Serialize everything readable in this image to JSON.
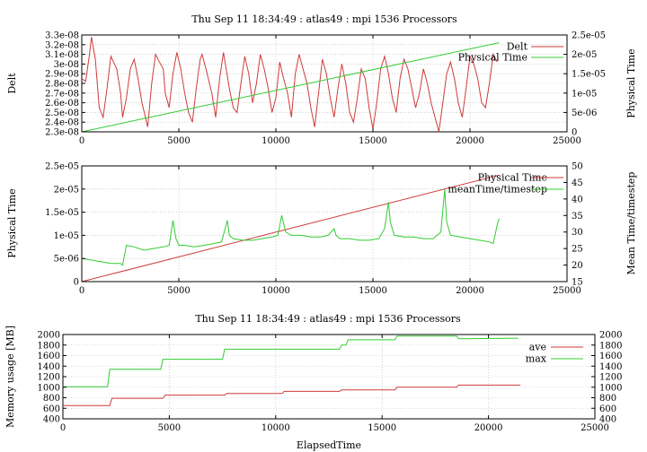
{
  "colors": {
    "red": "#d03a3a",
    "green": "#33cc33",
    "axis": "#000000",
    "grid": "#b8b8b8"
  },
  "chart_data": [
    {
      "type": "line",
      "title": "Thu Sep 11 18:34:49 : atlas49 : mpi 1536 Processors",
      "xlabel": "",
      "ylabel": "Delt",
      "y2label": "Physical Time",
      "xlim": [
        0,
        25000
      ],
      "ylim": [
        2.3e-08,
        3.3e-08
      ],
      "y2lim": [
        0,
        2.5e-05
      ],
      "xticks": [
        "0",
        "5000",
        "10000",
        "15000",
        "20000",
        "25000"
      ],
      "yticks": [
        "2.3e-08",
        "2.4e-08",
        "2.5e-08",
        "2.6e-08",
        "2.7e-08",
        "2.8e-08",
        "2.9e-08",
        "3e-08",
        "3.1e-08",
        "3.2e-08",
        "3.3e-08"
      ],
      "y2ticks": [
        "0",
        "5e-06",
        "1e-05",
        "1.5e-05",
        "2e-05",
        "2.5e-05"
      ],
      "grid": true,
      "legend_position": "top-right",
      "series": [
        {
          "name": "Delt",
          "axis": "left",
          "color": "#d03a3a",
          "x": [
            0,
            200,
            400,
            500,
            700,
            900,
            1100,
            1300,
            1500,
            1800,
            2000,
            2100,
            2300,
            2500,
            2700,
            2900,
            3100,
            3400,
            3600,
            3800,
            4000,
            4200,
            4300,
            4500,
            4700,
            4900,
            5100,
            5300,
            5500,
            5700,
            5900,
            6100,
            6200,
            6400,
            6700,
            6900,
            7100,
            7300,
            7400,
            7600,
            7800,
            8000,
            8200,
            8400,
            8600,
            8800,
            9000,
            9200,
            9400,
            9600,
            9800,
            10000,
            10200,
            10400,
            10600,
            10800,
            11000,
            11200,
            11400,
            11600,
            11800,
            12000,
            12200,
            12400,
            12600,
            12800,
            13000,
            13200,
            13400,
            13600,
            13800,
            14000,
            14200,
            14400,
            14600,
            14800,
            15000,
            15200,
            15400,
            15600,
            15800,
            16000,
            16200,
            16400,
            16600,
            16800,
            17000,
            17200,
            17400,
            17600,
            17800,
            18000,
            18200,
            18400,
            18600,
            18800,
            19000,
            19200,
            19400,
            19600,
            19800,
            20000,
            20200,
            20400,
            20600,
            20800,
            21000,
            21200,
            21400
          ],
          "y": [
            2.85e-08,
            2.82e-08,
            3.1e-08,
            3.28e-08,
            3.05e-08,
            2.55e-08,
            2.45e-08,
            2.75e-08,
            3.08e-08,
            2.95e-08,
            2.7e-08,
            2.45e-08,
            2.65e-08,
            2.95e-08,
            3.05e-08,
            2.85e-08,
            2.6e-08,
            2.35e-08,
            2.8e-08,
            3.1e-08,
            3.02e-08,
            2.95e-08,
            2.7e-08,
            2.55e-08,
            2.9e-08,
            3.12e-08,
            2.95e-08,
            2.7e-08,
            2.5e-08,
            2.4e-08,
            2.75e-08,
            3.05e-08,
            3.1e-08,
            2.95e-08,
            2.7e-08,
            2.45e-08,
            2.85e-08,
            3.12e-08,
            3e-08,
            2.75e-08,
            2.55e-08,
            2.5e-08,
            2.8e-08,
            3.08e-08,
            2.9e-08,
            2.6e-08,
            2.8e-08,
            3.1e-08,
            2.95e-08,
            2.75e-08,
            2.5e-08,
            2.65e-08,
            3.02e-08,
            2.85e-08,
            2.7e-08,
            2.45e-08,
            2.9e-08,
            3.1e-08,
            2.95e-08,
            2.8e-08,
            2.55e-08,
            2.35e-08,
            2.7e-08,
            3.05e-08,
            2.9e-08,
            2.65e-08,
            2.45e-08,
            2.75e-08,
            3e-08,
            2.8e-08,
            2.5e-08,
            2.4e-08,
            2.65e-08,
            2.95e-08,
            2.85e-08,
            2.55e-08,
            2.33e-08,
            2.6e-08,
            2.95e-08,
            3.08e-08,
            2.9e-08,
            2.65e-08,
            2.5e-08,
            2.85e-08,
            3.05e-08,
            2.95e-08,
            2.75e-08,
            2.55e-08,
            2.7e-08,
            2.95e-08,
            2.8e-08,
            2.6e-08,
            2.45e-08,
            2.3e-08,
            2.6e-08,
            2.9e-08,
            3.02e-08,
            2.85e-08,
            2.6e-08,
            2.45e-08,
            2.75e-08,
            3.08e-08,
            3e-08,
            2.85e-08,
            2.6e-08,
            2.55e-08,
            2.8e-08,
            3.1e-08,
            3.02e-08
          ]
        },
        {
          "name": "Physical Time",
          "axis": "right",
          "color": "#33cc33",
          "x": [
            0,
            21500
          ],
          "y": [
            0,
            2.3e-05
          ]
        }
      ]
    },
    {
      "type": "line",
      "title": "",
      "xlabel": "",
      "ylabel": "Physical Time",
      "y2label": "Mean Time/timestep",
      "xlim": [
        0,
        25000
      ],
      "ylim": [
        0,
        2.5e-05
      ],
      "y2lim": [
        15,
        50
      ],
      "xticks": [
        "0",
        "5000",
        "10000",
        "15000",
        "20000",
        "25000"
      ],
      "yticks": [
        "0",
        "5e-06",
        "1e-05",
        "1.5e-05",
        "2e-05",
        "2.5e-05"
      ],
      "y2ticks": [
        "15",
        "20",
        "25",
        "30",
        "35",
        "40",
        "45",
        "50"
      ],
      "grid": true,
      "legend_position": "top-right",
      "series": [
        {
          "name": "Physical Time",
          "axis": "left",
          "color": "#d03a3a",
          "x": [
            0,
            21500
          ],
          "y": [
            0,
            2.3e-05
          ]
        },
        {
          "name": "meanTime/timestep",
          "axis": "right",
          "color": "#33cc33",
          "x": [
            0,
            500,
            1000,
            1500,
            2000,
            2100,
            2300,
            2700,
            3200,
            3700,
            4200,
            4500,
            4700,
            4850,
            5000,
            5300,
            5800,
            6300,
            6800,
            7200,
            7500,
            7600,
            7800,
            8300,
            8800,
            9300,
            9800,
            10100,
            10300,
            10500,
            10800,
            11300,
            11800,
            12300,
            12700,
            13000,
            13100,
            13300,
            13800,
            14300,
            14800,
            15300,
            15600,
            15800,
            15900,
            16100,
            16600,
            17100,
            17600,
            18100,
            18500,
            18700,
            18800,
            19000,
            19500,
            20000,
            20500,
            21000,
            21200,
            21400,
            21500
          ],
          "y": [
            22,
            21.5,
            21,
            20.5,
            20.5,
            20,
            26,
            25.5,
            24.5,
            25,
            25.5,
            26,
            33.5,
            28,
            26,
            26,
            25.5,
            26,
            26.5,
            27,
            33.5,
            29,
            28,
            27.5,
            27.5,
            28,
            28.5,
            29,
            35,
            30,
            29,
            29,
            28.5,
            28.5,
            29,
            31,
            29,
            28,
            28,
            27.5,
            27.5,
            28,
            31,
            39,
            33,
            29,
            28.5,
            28.5,
            28,
            28,
            30,
            43,
            33,
            29,
            28.5,
            28,
            27.5,
            27,
            26.5,
            32,
            34
          ]
        }
      ]
    },
    {
      "type": "line",
      "title": "Thu Sep 11 18:34:49 : atlas49 : mpi 1536 Processors",
      "xlabel": "ElapsedTime",
      "ylabel": "Memory usage [MB]",
      "xlim": [
        0,
        25000
      ],
      "ylim": [
        400,
        2000
      ],
      "y2lim": [
        400,
        2000
      ],
      "xticks": [
        "0",
        "5000",
        "10000",
        "15000",
        "20000",
        "25000"
      ],
      "yticks": [
        "400",
        "600",
        "800",
        "1000",
        "1200",
        "1400",
        "1600",
        "1800",
        "2000"
      ],
      "y2ticks": [
        "400",
        "600",
        "800",
        "1000",
        "1200",
        "1400",
        "1600",
        "1800",
        "2000"
      ],
      "grid": true,
      "legend_position": "top-right",
      "series": [
        {
          "name": "ave",
          "axis": "left",
          "color": "#d03a3a",
          "x": [
            0,
            2200,
            2300,
            4700,
            4800,
            7600,
            7700,
            10300,
            10400,
            13000,
            13100,
            15600,
            15700,
            18500,
            18600,
            21500
          ],
          "y": [
            650,
            650,
            790,
            790,
            850,
            850,
            880,
            880,
            920,
            920,
            950,
            950,
            1000,
            1000,
            1040,
            1040
          ]
        },
        {
          "name": "max",
          "axis": "left",
          "color": "#33cc33",
          "x": [
            0,
            2100,
            2200,
            4600,
            4700,
            7500,
            7600,
            13000,
            13100,
            13300,
            13400,
            15600,
            15700,
            18500,
            18600,
            21400
          ],
          "y": [
            1010,
            1010,
            1340,
            1340,
            1530,
            1530,
            1720,
            1720,
            1800,
            1800,
            1900,
            1900,
            1970,
            1970,
            1920,
            1930
          ]
        }
      ]
    }
  ]
}
